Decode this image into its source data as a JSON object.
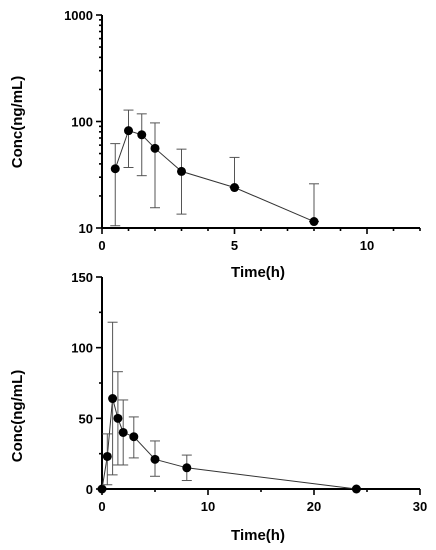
{
  "chart_data": [
    {
      "type": "scatter",
      "line": true,
      "error_bars": true,
      "ylabel": "Conc(ng/mL)",
      "xlabel": "Time(h)",
      "yscale": "log",
      "xlim": [
        0,
        12
      ],
      "ylim": [
        10,
        1000
      ],
      "x_ticks": [
        0,
        5,
        10
      ],
      "y_ticks": [
        10,
        100,
        1000
      ],
      "x_tick_labels": [
        "0",
        "5",
        "10"
      ],
      "y_tick_labels": [
        "10",
        "100",
        "1000"
      ],
      "grid": false,
      "points": [
        {
          "x": 0.5,
          "y": 36,
          "err_low": 10.5,
          "err_high": 62
        },
        {
          "x": 1,
          "y": 82,
          "err_low": 37,
          "err_high": 128
        },
        {
          "x": 1.5,
          "y": 75,
          "err_low": 31,
          "err_high": 118
        },
        {
          "x": 2,
          "y": 56,
          "err_low": 15.5,
          "err_high": 97
        },
        {
          "x": 3,
          "y": 34,
          "err_low": 13.5,
          "err_high": 55
        },
        {
          "x": 5,
          "y": 24,
          "err_low": 24,
          "err_high": 46
        },
        {
          "x": 8,
          "y": 11.5,
          "err_low": 11.5,
          "err_high": 26
        }
      ]
    },
    {
      "type": "scatter",
      "line": true,
      "error_bars": true,
      "ylabel": "Conc(ng/mL)",
      "xlabel": "Time(h)",
      "yscale": "linear",
      "xlim": [
        0,
        30
      ],
      "ylim": [
        0,
        150
      ],
      "x_ticks": [
        0,
        10,
        20,
        30
      ],
      "y_ticks": [
        0,
        50,
        100,
        150
      ],
      "x_tick_labels": [
        "0",
        "10",
        "20",
        "30"
      ],
      "y_tick_labels": [
        "0",
        "50",
        "100",
        "150"
      ],
      "grid": false,
      "points": [
        {
          "x": 0,
          "y": 0,
          "err_low": 0,
          "err_high": 0
        },
        {
          "x": 0.5,
          "y": 23,
          "err_low": 3,
          "err_high": 39
        },
        {
          "x": 1,
          "y": 64,
          "err_low": 10,
          "err_high": 118
        },
        {
          "x": 1.5,
          "y": 50,
          "err_low": 17,
          "err_high": 83
        },
        {
          "x": 2,
          "y": 40,
          "err_low": 17,
          "err_high": 63
        },
        {
          "x": 3,
          "y": 37,
          "err_low": 22,
          "err_high": 51
        },
        {
          "x": 5,
          "y": 21,
          "err_low": 9,
          "err_high": 34
        },
        {
          "x": 8,
          "y": 15,
          "err_low": 6,
          "err_high": 24
        },
        {
          "x": 24,
          "y": 0,
          "err_low": 0,
          "err_high": 0
        }
      ]
    }
  ]
}
